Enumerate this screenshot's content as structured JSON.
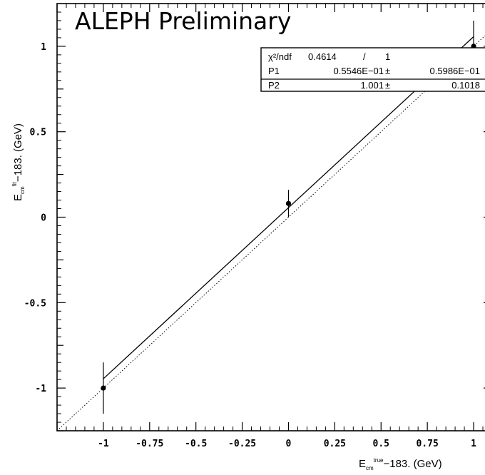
{
  "chart_data": {
    "type": "scatter",
    "title": "ALEPH Preliminary",
    "xlabel": {
      "main": "E",
      "sub": "cm",
      "sup": "true",
      "rest": "−183.  (GeV)"
    },
    "ylabel": {
      "main": "E",
      "sub": "cm",
      "sup": "fit",
      "rest": "−183.  (GeV)"
    },
    "xlim": [
      -1.25,
      1.1
    ],
    "ylim": [
      -1.25,
      1.25
    ],
    "xticks": [
      -1,
      -0.75,
      -0.5,
      -0.25,
      0,
      0.25,
      0.5,
      0.75,
      1
    ],
    "xtick_labels": [
      "-1",
      "-0.75",
      "-0.5",
      "-0.25",
      "0",
      "0.25",
      "0.5",
      "0.75",
      "1"
    ],
    "yticks": [
      -1,
      -0.5,
      0,
      0.5,
      1
    ],
    "ytick_labels": [
      "-1",
      "-0.5",
      "0",
      "0.5",
      "1"
    ],
    "points": [
      {
        "x": -1,
        "y": -1.0,
        "yerr": 0.15
      },
      {
        "x": 0,
        "y": 0.08,
        "yerr": 0.08
      },
      {
        "x": 1,
        "y": 1.0,
        "yerr": 0.15
      }
    ],
    "fit_line": {
      "intercept": 0.05546,
      "slope": 1.001,
      "style": "solid"
    },
    "reference_line": {
      "intercept": 0,
      "slope": 1,
      "style": "dotted"
    },
    "stats_box": {
      "rows": [
        {
          "label": "χ²/ndf",
          "value": "0.4614",
          "sep": "/",
          "error": "1"
        },
        {
          "label": "P1",
          "value": "0.5546E−01",
          "sep": "±",
          "error": "0.5986E−01"
        },
        {
          "label": "P2",
          "value": "1.001",
          "sep": "±",
          "error": "0.1018"
        }
      ]
    }
  }
}
